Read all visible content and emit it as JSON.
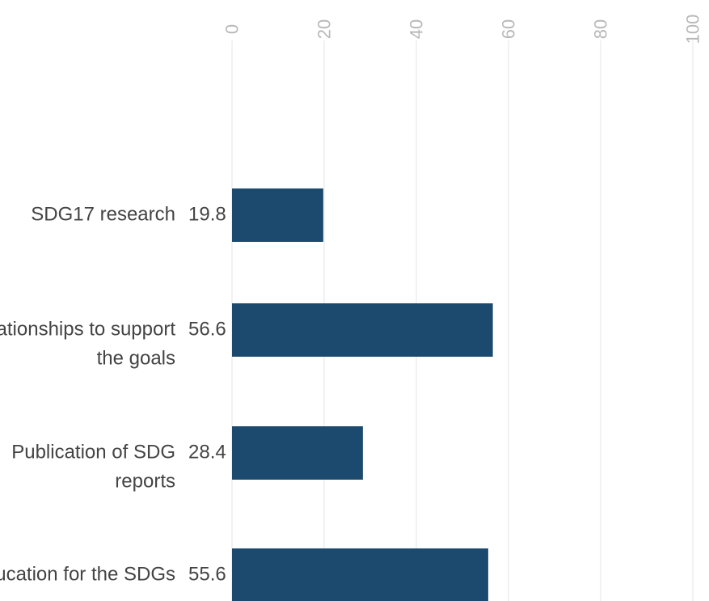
{
  "chart_data": {
    "type": "bar",
    "orientation": "horizontal",
    "categories": [
      [
        "SDG17 research"
      ],
      [
        "Relationships to support",
        "the goals"
      ],
      [
        "Publication of SDG",
        "reports"
      ],
      [
        "Education for the SDGs"
      ]
    ],
    "values": [
      19.8,
      56.6,
      28.4,
      55.6
    ],
    "value_labels": [
      "19.8",
      "56.6",
      "28.4",
      "55.6"
    ],
    "xlim": [
      0,
      100
    ],
    "x_ticks": [
      "0",
      "20",
      "40",
      "60",
      "80",
      "100"
    ],
    "x_axis_position": "top",
    "grid": true,
    "legend": "none",
    "bar_color": "#1b4a6e",
    "gridline_color": "#e6e6e6",
    "tick_color": "#b8b8b8",
    "label_color": "#444444"
  }
}
